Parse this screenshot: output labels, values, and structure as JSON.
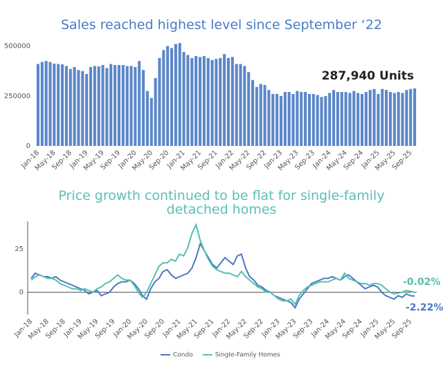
{
  "chart_data": [
    {
      "type": "bar",
      "title": "Sales reached highest level since September ‘22",
      "title_color": "#4a7bc4",
      "color": "#5b87c9",
      "annotation": "287,940 Units",
      "categories": [
        "Jan-18",
        null,
        null,
        null,
        "May-18",
        null,
        null,
        null,
        "Sep-18",
        null,
        null,
        null,
        "Jan-19",
        null,
        null,
        null,
        "May-19",
        null,
        null,
        null,
        "Sep-19",
        null,
        null,
        null,
        "Jan-20",
        null,
        null,
        null,
        "May-20",
        null,
        null,
        null,
        "Sep-20",
        null,
        null,
        null,
        "Jan-21",
        null,
        null,
        null,
        "May-21",
        null,
        null,
        null,
        "Sep-21",
        null,
        null,
        null,
        "Jan-22",
        null,
        null,
        null,
        "May-22",
        null,
        null,
        null,
        "Sep-22",
        null,
        null,
        null,
        "Jan-23",
        null,
        null,
        null,
        "May-23",
        null,
        null,
        null,
        "Sep-23",
        null,
        null,
        null,
        "Jan-24",
        null,
        null,
        null,
        "May-24",
        null,
        null,
        null,
        "Sep-24",
        null,
        null,
        null,
        "Jan-25",
        null,
        null,
        null,
        "May-25",
        null,
        null,
        null,
        "Sep-25",
        null
      ],
      "values": [
        410000,
        420000,
        425000,
        420000,
        412000,
        410000,
        408000,
        400000,
        385000,
        395000,
        380000,
        375000,
        360000,
        395000,
        400000,
        398000,
        405000,
        390000,
        410000,
        405000,
        405000,
        405000,
        400000,
        400000,
        395000,
        425000,
        380000,
        275000,
        240000,
        340000,
        440000,
        480000,
        500000,
        490000,
        510000,
        515000,
        470000,
        455000,
        440000,
        450000,
        445000,
        450000,
        440000,
        430000,
        435000,
        440000,
        460000,
        440000,
        445000,
        410000,
        410000,
        400000,
        370000,
        330000,
        295000,
        310000,
        305000,
        280000,
        260000,
        260000,
        250000,
        270000,
        270000,
        260000,
        275000,
        270000,
        270000,
        260000,
        260000,
        255000,
        245000,
        250000,
        265000,
        280000,
        270000,
        270000,
        270000,
        265000,
        275000,
        265000,
        260000,
        270000,
        280000,
        285000,
        260000,
        285000,
        280000,
        270000,
        265000,
        270000,
        265000,
        280000,
        285000,
        287940
      ],
      "ylim": [
        0,
        540000
      ],
      "yticks": [
        0,
        250000,
        500000
      ],
      "grid": false
    },
    {
      "type": "line",
      "title": "Price growth continued to be flat for single-family detached homes",
      "title_color": "#5cbfb3",
      "annotations": [
        "-0.02%",
        "-2.22%"
      ],
      "categories": [
        "Jan-18",
        null,
        null,
        null,
        "May-18",
        null,
        null,
        null,
        "Sep-18",
        null,
        null,
        null,
        "Jan-19",
        null,
        null,
        null,
        "May-19",
        null,
        null,
        null,
        "Sep-19",
        null,
        null,
        null,
        "Jan-20",
        null,
        null,
        null,
        "May-20",
        null,
        null,
        null,
        "Sep-20",
        null,
        null,
        null,
        "Jan-21",
        null,
        null,
        null,
        "May-21",
        null,
        null,
        null,
        "Sep-21",
        null,
        null,
        null,
        "Jan-22",
        null,
        null,
        null,
        "May-22",
        null,
        null,
        null,
        "Sep-22",
        null,
        null,
        null,
        "Jan-23",
        null,
        null,
        null,
        "May-23",
        null,
        null,
        null,
        "Sep-23",
        null,
        null,
        null,
        "Jan-24",
        null,
        null,
        null,
        "May-24",
        null,
        null,
        null,
        "Sep-24",
        null,
        null,
        null,
        "Jan-25",
        null,
        null,
        null,
        "May-25",
        null,
        null,
        null,
        "Sep-25",
        null
      ],
      "series": [
        {
          "name": "Condo",
          "color": "#4a78c4",
          "values": [
            8,
            11,
            10,
            9,
            9,
            8,
            9,
            7,
            6,
            5,
            4,
            3,
            2,
            1,
            -1,
            0,
            1,
            -2,
            -1,
            0,
            3,
            5,
            6,
            6,
            7,
            5,
            2,
            -2,
            -4,
            2,
            6,
            8,
            12,
            13,
            10,
            8,
            9,
            10,
            11,
            14,
            20,
            28,
            24,
            20,
            16,
            14,
            17,
            20,
            18,
            16,
            21,
            22,
            14,
            9,
            7,
            4,
            3,
            1,
            0,
            -2,
            -3,
            -4,
            -5,
            -6,
            -9,
            -4,
            -1,
            2,
            5,
            6,
            7,
            8,
            8,
            9,
            8,
            7,
            9,
            10,
            8,
            6,
            4,
            2,
            3,
            4,
            3,
            0,
            -2,
            -3,
            -4,
            -2,
            -3,
            -1,
            -2,
            -2.22
          ]
        },
        {
          "name": "Single-Family Homes",
          "color": "#52bfb0",
          "values": [
            7,
            9,
            10,
            9,
            8,
            8,
            7,
            5,
            4,
            3,
            2,
            2,
            1,
            2,
            1,
            0,
            2,
            3,
            5,
            6,
            8,
            10,
            8,
            7,
            7,
            4,
            0,
            -3,
            0,
            5,
            10,
            15,
            17,
            17,
            19,
            18,
            22,
            21,
            26,
            34,
            39,
            30,
            24,
            19,
            15,
            13,
            12,
            11,
            11,
            10,
            9,
            12,
            9,
            7,
            5,
            3,
            2,
            0,
            0,
            -2,
            -4,
            -5,
            -5,
            -4,
            -7,
            -2,
            1,
            3,
            4,
            5,
            6,
            6,
            6,
            7,
            8,
            7,
            11,
            8,
            7,
            6,
            5,
            5,
            4,
            5,
            5,
            4,
            2,
            0,
            -1,
            -0.5,
            0,
            1,
            0.5,
            -0.02
          ]
        }
      ],
      "ylim": [
        -13,
        41
      ],
      "yticks": [
        0,
        25
      ],
      "grid": false,
      "legend": "bottom"
    }
  ]
}
